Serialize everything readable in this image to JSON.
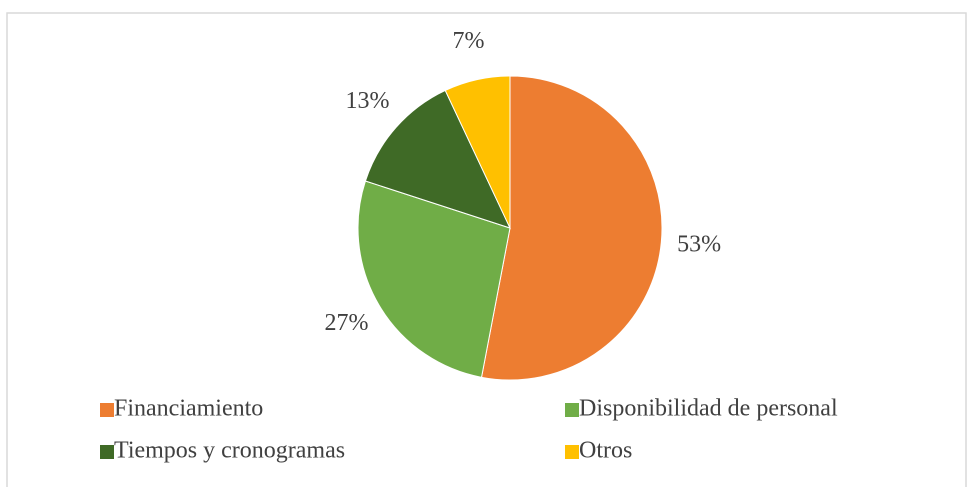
{
  "chart_data": {
    "type": "pie",
    "categories": [
      "Financiamiento",
      "Disponibilidad de personal",
      "Tiempos y cronogramas",
      "Otros"
    ],
    "values": [
      53,
      27,
      13,
      7
    ],
    "value_labels": [
      "53%",
      "27%",
      "13%",
      "7%"
    ],
    "colors": [
      "#ed7d31",
      "#70ad47",
      "#3f6a26",
      "#ffc000"
    ],
    "legend": "bottom"
  }
}
